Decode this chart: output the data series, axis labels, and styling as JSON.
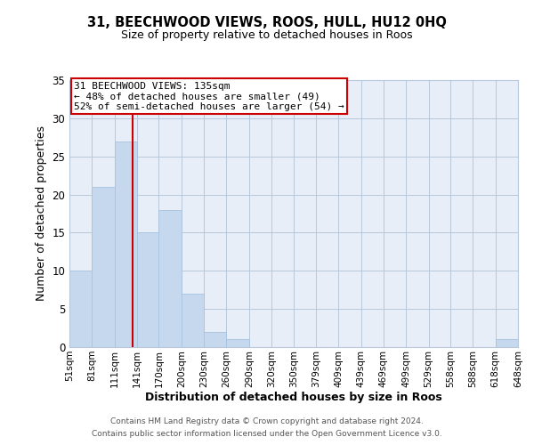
{
  "title": "31, BEECHWOOD VIEWS, ROOS, HULL, HU12 0HQ",
  "subtitle": "Size of property relative to detached houses in Roos",
  "xlabel": "Distribution of detached houses by size in Roos",
  "ylabel": "Number of detached properties",
  "bar_color": "#c5d8ee",
  "bar_edge_color": "#a8c4e0",
  "background_color": "#e8eef8",
  "axes_background": "#e8eef8",
  "grid_color": "#b8c8dc",
  "annotation_box_color": "#cc0000",
  "vline_color": "#cc0000",
  "annotation_line1": "31 BEECHWOOD VIEWS: 135sqm",
  "annotation_line2": "← 48% of detached houses are smaller (49)",
  "annotation_line3": "52% of semi-detached houses are larger (54) →",
  "footer1": "Contains HM Land Registry data © Crown copyright and database right 2024.",
  "footer2": "Contains public sector information licensed under the Open Government Licence v3.0.",
  "bins": [
    51,
    81,
    111,
    141,
    170,
    200,
    230,
    260,
    290,
    320,
    350,
    379,
    409,
    439,
    469,
    499,
    529,
    558,
    588,
    618,
    648
  ],
  "counts": [
    10,
    21,
    27,
    15,
    18,
    7,
    2,
    1,
    0,
    0,
    0,
    0,
    0,
    0,
    0,
    0,
    0,
    0,
    0,
    1
  ],
  "property_size": 135,
  "ylim": [
    0,
    35
  ],
  "yticks": [
    0,
    5,
    10,
    15,
    20,
    25,
    30,
    35
  ]
}
